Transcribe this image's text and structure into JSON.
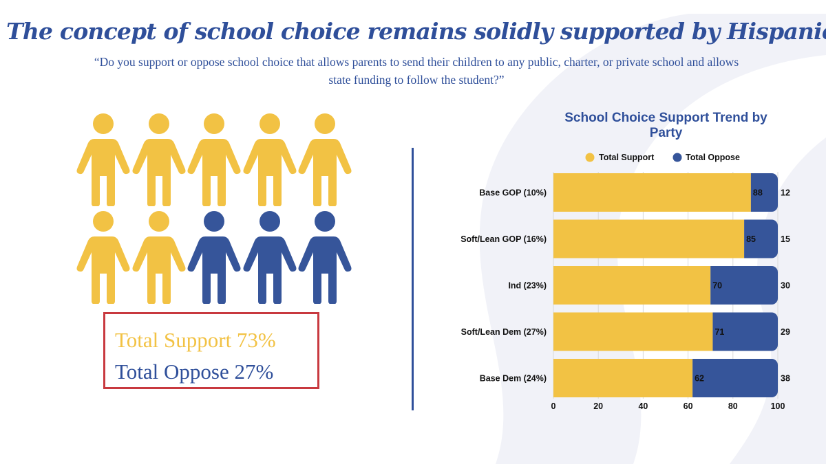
{
  "title": "The concept of school choice remains solidly supported by Hispanics",
  "question": "“Do you support or oppose school choice that allows parents to send their children to any public, charter, or private school and allows state funding to follow the student?”",
  "icon_array": {
    "icon": "person-icon",
    "total": 10,
    "support_count": 7,
    "oppose_count": 3
  },
  "summary": {
    "support_label": "Total Support  73%",
    "oppose_label": "Total Oppose 27%"
  },
  "colors": {
    "support": "#f2c244",
    "oppose": "#36559a",
    "title": "#2f4f9a",
    "box_border": "#c8393f"
  },
  "chart_data": {
    "type": "bar",
    "orientation": "horizontal",
    "stacked": true,
    "title": "School Choice Support Trend by Party",
    "categories": [
      "Base GOP (10%)",
      "Soft/Lean GOP (16%)",
      "Ind (23%)",
      "Soft/Lean Dem (27%)",
      "Base Dem (24%)"
    ],
    "series": [
      {
        "name": "Total Support",
        "values": [
          88,
          85,
          70,
          71,
          62
        ]
      },
      {
        "name": "Total Oppose",
        "values": [
          12,
          15,
          30,
          29,
          38
        ]
      }
    ],
    "xlim": [
      0,
      100
    ],
    "xticks": [
      0,
      20,
      40,
      60,
      80,
      100
    ],
    "grid": true,
    "legend": "top"
  }
}
